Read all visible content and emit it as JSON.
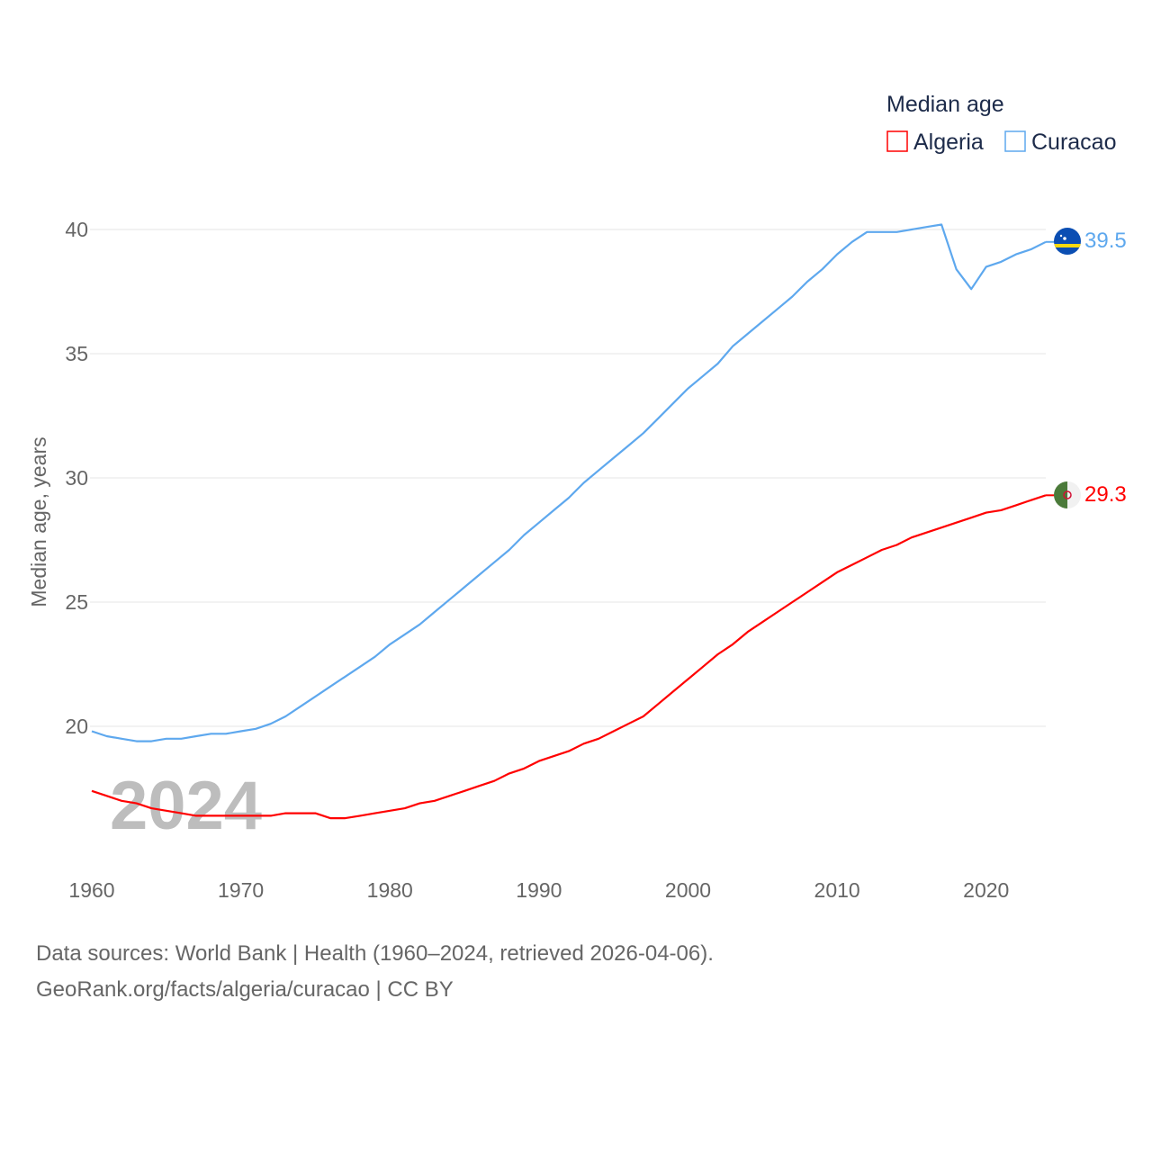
{
  "chart_data": {
    "type": "line",
    "title": "Median age",
    "xlabel": "",
    "ylabel": "Median age, years",
    "xlim": [
      1960,
      2024
    ],
    "ylim": [
      16,
      41
    ],
    "xticks": [
      1960,
      1970,
      1980,
      1990,
      2000,
      2010,
      2020
    ],
    "yticks": [
      20,
      25,
      30,
      35,
      40
    ],
    "grid": true,
    "legend_position": "top-right",
    "watermark_year": "2024",
    "x": [
      1960,
      1961,
      1962,
      1963,
      1964,
      1965,
      1966,
      1967,
      1968,
      1969,
      1970,
      1971,
      1972,
      1973,
      1974,
      1975,
      1976,
      1977,
      1978,
      1979,
      1980,
      1981,
      1982,
      1983,
      1984,
      1985,
      1986,
      1987,
      1988,
      1989,
      1990,
      1991,
      1992,
      1993,
      1994,
      1995,
      1996,
      1997,
      1998,
      1999,
      2000,
      2001,
      2002,
      2003,
      2004,
      2005,
      2006,
      2007,
      2008,
      2009,
      2010,
      2011,
      2012,
      2013,
      2014,
      2015,
      2016,
      2017,
      2018,
      2019,
      2020,
      2021,
      2022,
      2023,
      2024
    ],
    "series": [
      {
        "name": "Algeria",
        "color": "#ff0000",
        "end_label": "29.3",
        "flag": "algeria-flag",
        "values": [
          17.4,
          17.2,
          17.0,
          16.9,
          16.7,
          16.6,
          16.5,
          16.4,
          16.4,
          16.4,
          16.4,
          16.4,
          16.4,
          16.5,
          16.5,
          16.5,
          16.3,
          16.3,
          16.4,
          16.5,
          16.6,
          16.7,
          16.9,
          17.0,
          17.2,
          17.4,
          17.6,
          17.8,
          18.1,
          18.3,
          18.6,
          18.8,
          19.0,
          19.3,
          19.5,
          19.8,
          20.1,
          20.4,
          20.9,
          21.4,
          21.9,
          22.4,
          22.9,
          23.3,
          23.8,
          24.2,
          24.6,
          25.0,
          25.4,
          25.8,
          26.2,
          26.5,
          26.8,
          27.1,
          27.3,
          27.6,
          27.8,
          28.0,
          28.2,
          28.4,
          28.6,
          28.7,
          28.9,
          29.1,
          29.3
        ]
      },
      {
        "name": "Curacao",
        "color": "#5ea8ee",
        "end_label": "39.5",
        "flag": "curacao-flag",
        "values": [
          19.8,
          19.6,
          19.5,
          19.4,
          19.4,
          19.5,
          19.5,
          19.6,
          19.7,
          19.7,
          19.8,
          19.9,
          20.1,
          20.4,
          20.8,
          21.2,
          21.6,
          22.0,
          22.4,
          22.8,
          23.3,
          23.7,
          24.1,
          24.6,
          25.1,
          25.6,
          26.1,
          26.6,
          27.1,
          27.7,
          28.2,
          28.7,
          29.2,
          29.8,
          30.3,
          30.8,
          31.3,
          31.8,
          32.4,
          33.0,
          33.6,
          34.1,
          34.6,
          35.3,
          35.8,
          36.3,
          36.8,
          37.3,
          37.9,
          38.4,
          39.0,
          39.5,
          39.9,
          39.9,
          39.9,
          40.0,
          40.1,
          40.2,
          38.4,
          37.6,
          38.5,
          38.7,
          39.0,
          39.2,
          39.5
        ]
      }
    ]
  },
  "footer": {
    "line1": "Data sources: World Bank | Health (1960–2024, retrieved 2026-04-06).",
    "line2": "GeoRank.org/facts/algeria/curacao | CC BY"
  }
}
